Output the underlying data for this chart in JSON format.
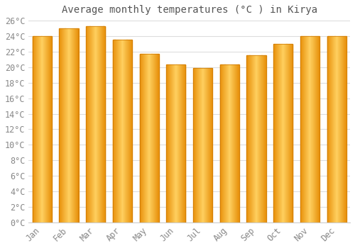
{
  "title": "Average monthly temperatures (°C ) in Kirya",
  "months": [
    "Jan",
    "Feb",
    "Mar",
    "Apr",
    "May",
    "Jun",
    "Jul",
    "Aug",
    "Sep",
    "Oct",
    "Nov",
    "Dec"
  ],
  "temperatures": [
    24.0,
    25.0,
    25.3,
    23.5,
    21.7,
    20.3,
    19.9,
    20.3,
    21.5,
    23.0,
    24.0,
    24.0
  ],
  "bar_color_left": "#E8900A",
  "bar_color_mid": "#FFD060",
  "bar_color_right": "#E8900A",
  "background_color": "#ffffff",
  "plot_bg_color": "#ffffff",
  "grid_color": "#dddddd",
  "text_color": "#888888",
  "ytick_step": 2,
  "ymin": 0,
  "ymax": 26,
  "title_fontsize": 10,
  "tick_fontsize": 8.5
}
